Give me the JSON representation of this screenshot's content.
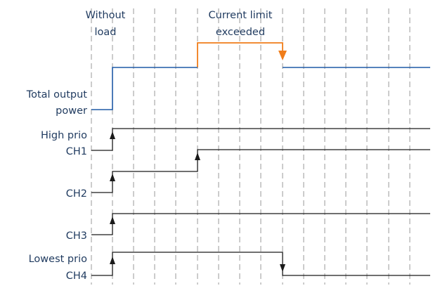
{
  "labels": {
    "without_load": [
      "Without",
      "load"
    ],
    "current_limit": [
      "Current limit",
      "exceeded"
    ],
    "total_output_power": [
      "Total output",
      "power"
    ],
    "high_prio": "High prio",
    "ch1": "CH1",
    "ch2": "CH2",
    "ch3": "CH3",
    "lowest_prio": "Lowest prio",
    "ch4": "CH4"
  },
  "colors": {
    "text": "#1f3a5f",
    "power_trace": "#1f5aa6",
    "current_limit_trace": "#f07d1a",
    "channel_trace": "#1a1a1a",
    "grid": "#9a9a9a"
  }
}
